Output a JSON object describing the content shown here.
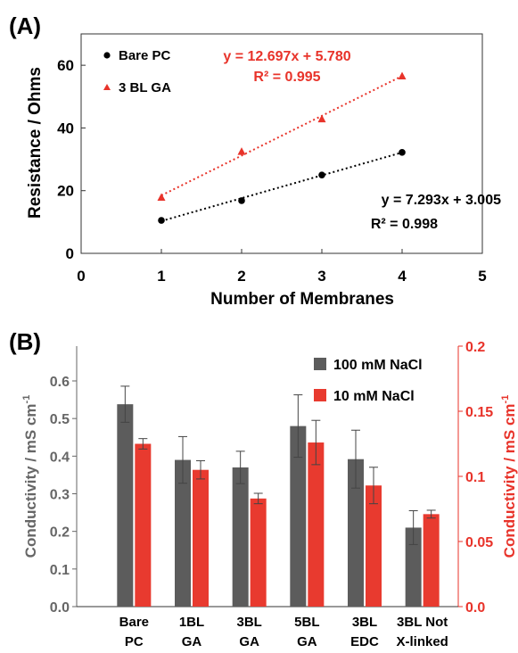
{
  "colors": {
    "black": "#000000",
    "red": "#e8332a",
    "gray": "#666666",
    "dark_series": "#5c5c5c",
    "red_series": "#e83a2f"
  },
  "chart_data": [
    {
      "panel_label": "(A)",
      "type": "scatter",
      "xlabel": "Number of Membranes",
      "ylabel": "Resistance / Ohms",
      "xlim": [
        0,
        5
      ],
      "ylim": [
        0,
        70
      ],
      "x_ticks": [
        0,
        1,
        2,
        3,
        4,
        5
      ],
      "y_ticks": [
        0,
        20,
        40,
        60
      ],
      "grid": false,
      "legend_position": "top-left",
      "series": [
        {
          "name": "Bare PC",
          "marker": "circle",
          "color": "#000000",
          "x": [
            1,
            2,
            3,
            4
          ],
          "y": [
            10.5,
            16.8,
            25.0,
            32.2
          ],
          "fit_equation": "y = 7.293x + 3.005",
          "fit_r2": "R² = 0.998",
          "fit": {
            "slope": 7.293,
            "intercept": 3.005
          }
        },
        {
          "name": "3 BL GA",
          "marker": "triangle",
          "color": "#e8332a",
          "x": [
            1,
            2,
            3,
            4
          ],
          "y": [
            17.8,
            32.4,
            42.8,
            56.5
          ],
          "fit_equation": "y = 12.697x + 5.780",
          "fit_r2": "R² = 0.995",
          "fit": {
            "slope": 12.697,
            "intercept": 5.78
          }
        }
      ]
    },
    {
      "panel_label": "(B)",
      "type": "bar",
      "categories": [
        "Bare PC",
        "1BL GA",
        "3BL GA",
        "5BL GA",
        "3BL EDC",
        "3BL Not X-linked"
      ],
      "category_lines": [
        [
          "Bare",
          "PC"
        ],
        [
          "1BL",
          "GA"
        ],
        [
          "3BL",
          "GA"
        ],
        [
          "5BL",
          "GA"
        ],
        [
          "3BL",
          "EDC"
        ],
        [
          "3BL Not",
          "X-linked"
        ]
      ],
      "ylabel_left": "Conductivity / mS cm",
      "ylabel_left_sup": "-1",
      "ylabel_right": "Conductivity / mS cm",
      "ylabel_right_sup": "-1",
      "ylim_left": [
        0,
        0.7
      ],
      "ylim_right": [
        0,
        0.2
      ],
      "y_ticks_left": [
        "0.0",
        "0.1",
        "0.2",
        "0.3",
        "0.4",
        "0.5",
        "0.6"
      ],
      "y_ticks_right": [
        "0.0",
        "0.05",
        "0.1",
        "0.15",
        "0.2"
      ],
      "grid": false,
      "legend_position": "top-right",
      "series": [
        {
          "name": "100 mM NaCl",
          "axis": "left",
          "color": "#5c5c5c",
          "values": [
            0.538,
            0.39,
            0.37,
            0.48,
            0.392,
            0.21
          ],
          "errors": [
            0.048,
            0.062,
            0.043,
            0.083,
            0.077,
            0.045
          ]
        },
        {
          "name": "10 mM NaCl",
          "axis": "right",
          "color": "#e83a2f",
          "values": [
            0.125,
            0.105,
            0.083,
            0.126,
            0.093,
            0.071
          ],
          "errors": [
            0.004,
            0.007,
            0.004,
            0.017,
            0.014,
            0.003
          ]
        }
      ]
    }
  ]
}
